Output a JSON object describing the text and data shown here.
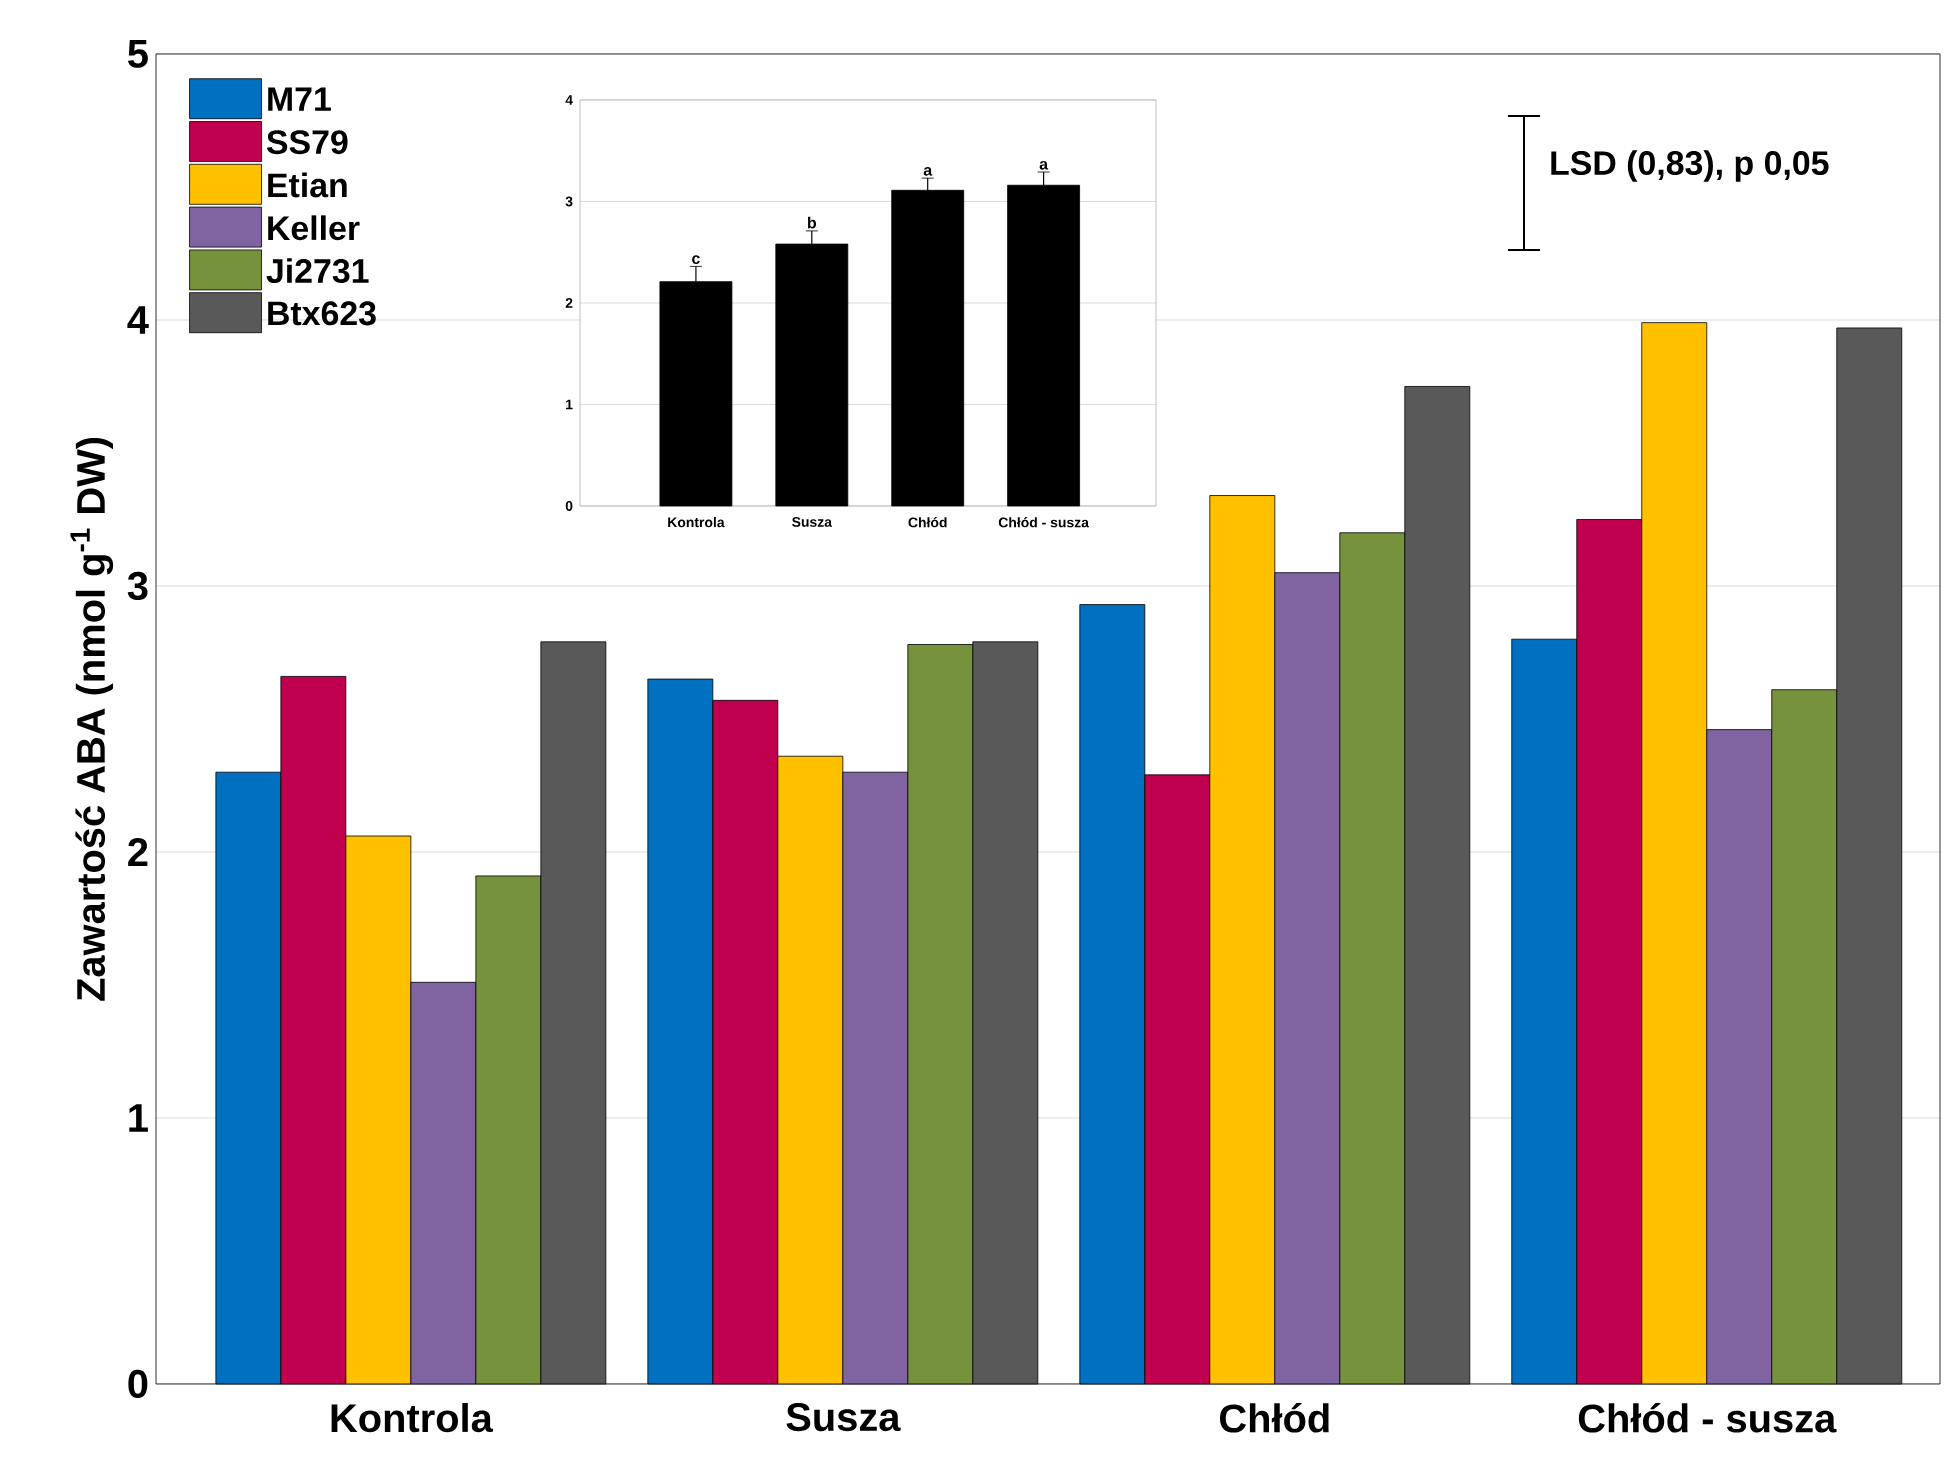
{
  "chart_data": [
    {
      "type": "bar",
      "ylabel": "Zawartość ABA (nmol g$^{-1}$ DW)",
      "categories": [
        "Kontrola",
        "Susza",
        "Chłód",
        "Chłód - susza"
      ],
      "series": [
        {
          "name": "M71",
          "color": "#0070c0",
          "values": [
            2.3,
            2.65,
            2.93,
            2.8
          ]
        },
        {
          "name": "SS79",
          "color": "#c0004e",
          "values": [
            2.66,
            2.57,
            2.29,
            3.25
          ]
        },
        {
          "name": "Etian",
          "color": "#ffc000",
          "values": [
            2.06,
            2.36,
            3.34,
            3.99
          ]
        },
        {
          "name": "Keller",
          "color": "#8064a2",
          "values": [
            1.51,
            2.3,
            3.05,
            2.46
          ]
        },
        {
          "name": "Ji2731",
          "color": "#76923c",
          "values": [
            1.91,
            2.78,
            3.2,
            2.61
          ]
        },
        {
          "name": "Btx623",
          "color": "#595959",
          "values": [
            2.79,
            2.79,
            3.75,
            3.97
          ]
        }
      ],
      "ylim": [
        0,
        5
      ],
      "yticks": [
        0,
        1,
        2,
        3,
        4,
        5
      ],
      "grid": "y",
      "legend": "top left",
      "annotations": [
        "LSD (0,83), p 0,05"
      ]
    },
    {
      "type": "bar",
      "categories": [
        "Kontrola",
        "Susza",
        "Chłód",
        "Chłód - susza"
      ],
      "values": [
        2.21,
        2.58,
        3.11,
        3.16
      ],
      "color": "#000000",
      "errors": [
        [
          2.21,
          2.36
        ],
        [
          2.58,
          2.71
        ],
        [
          3.11,
          3.23
        ],
        [
          3.16,
          3.29
        ]
      ],
      "ylim": [
        0,
        4
      ],
      "yticks": [
        0,
        1,
        2,
        3,
        4
      ],
      "grid": "y",
      "annotations": [
        {
          "text": "c",
          "x": "Kontrola",
          "y": 2.36
        },
        {
          "text": "b",
          "x": "Susza",
          "y": 2.71
        },
        {
          "text": "a",
          "x": "Chłód",
          "y": 3.23
        },
        {
          "text": "a",
          "x": "Chłód - susza",
          "y": 3.29
        }
      ]
    }
  ]
}
